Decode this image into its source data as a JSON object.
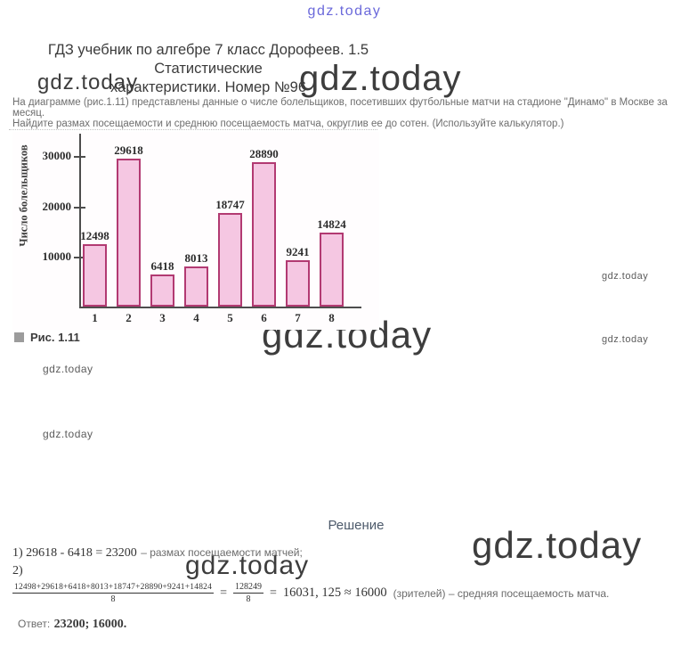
{
  "site": {
    "logo": "gdz.today",
    "watermark": "gdz.today",
    "logo_color": "#4543d2"
  },
  "header": {
    "title_line1": "ГДЗ учебник по алгебре 7 класс Дорофеев. 1.5 Статистические",
    "title_line2": "характеристики. Номер №96"
  },
  "problem": {
    "line1": "На диаграмме (рис.1.11) представлены данные о числе болельщиков, посетивших футбольные матчи на стадионе \"Динамо\" в Москве за месяц.",
    "line2": "Найдите размах посещаемости и среднюю посещаемость матча, округлив ее до сотен. (Используйте калькулятор.)"
  },
  "chart_data": {
    "type": "bar",
    "categories": [
      "1",
      "2",
      "3",
      "4",
      "5",
      "6",
      "7",
      "8"
    ],
    "values": [
      12498,
      29618,
      6418,
      8013,
      18747,
      28890,
      9241,
      14824
    ],
    "title": "Рис. 1.11",
    "xlabel": "",
    "ylabel": "Число болельщиков",
    "yticks": [
      10000,
      20000,
      30000
    ],
    "ylim": [
      0,
      32000
    ],
    "grid": false,
    "legend": "none",
    "bar_fill": "#f5c7e2",
    "bar_border": "#b23a72"
  },
  "figure": {
    "caption": "Рис. 1.11"
  },
  "solution": {
    "heading": "Решение",
    "step1_math": "1) 29618 - 6418 = 23200",
    "step1_note": "– размах посещаемости матчей;",
    "step2_label": "2)",
    "frac1_num": "12498+29618+6418+8013+18747+28890+9241+14824",
    "frac1_den": "8",
    "eq1": "=",
    "frac2_num": "128249",
    "frac2_den": "8",
    "eq2": "=",
    "result": "16031, 125 ≈ 16000",
    "result_note": "(зрителей) – средняя посещаемость матча.",
    "answer_label": "Ответ:",
    "answer_value": "23200; 16000."
  }
}
